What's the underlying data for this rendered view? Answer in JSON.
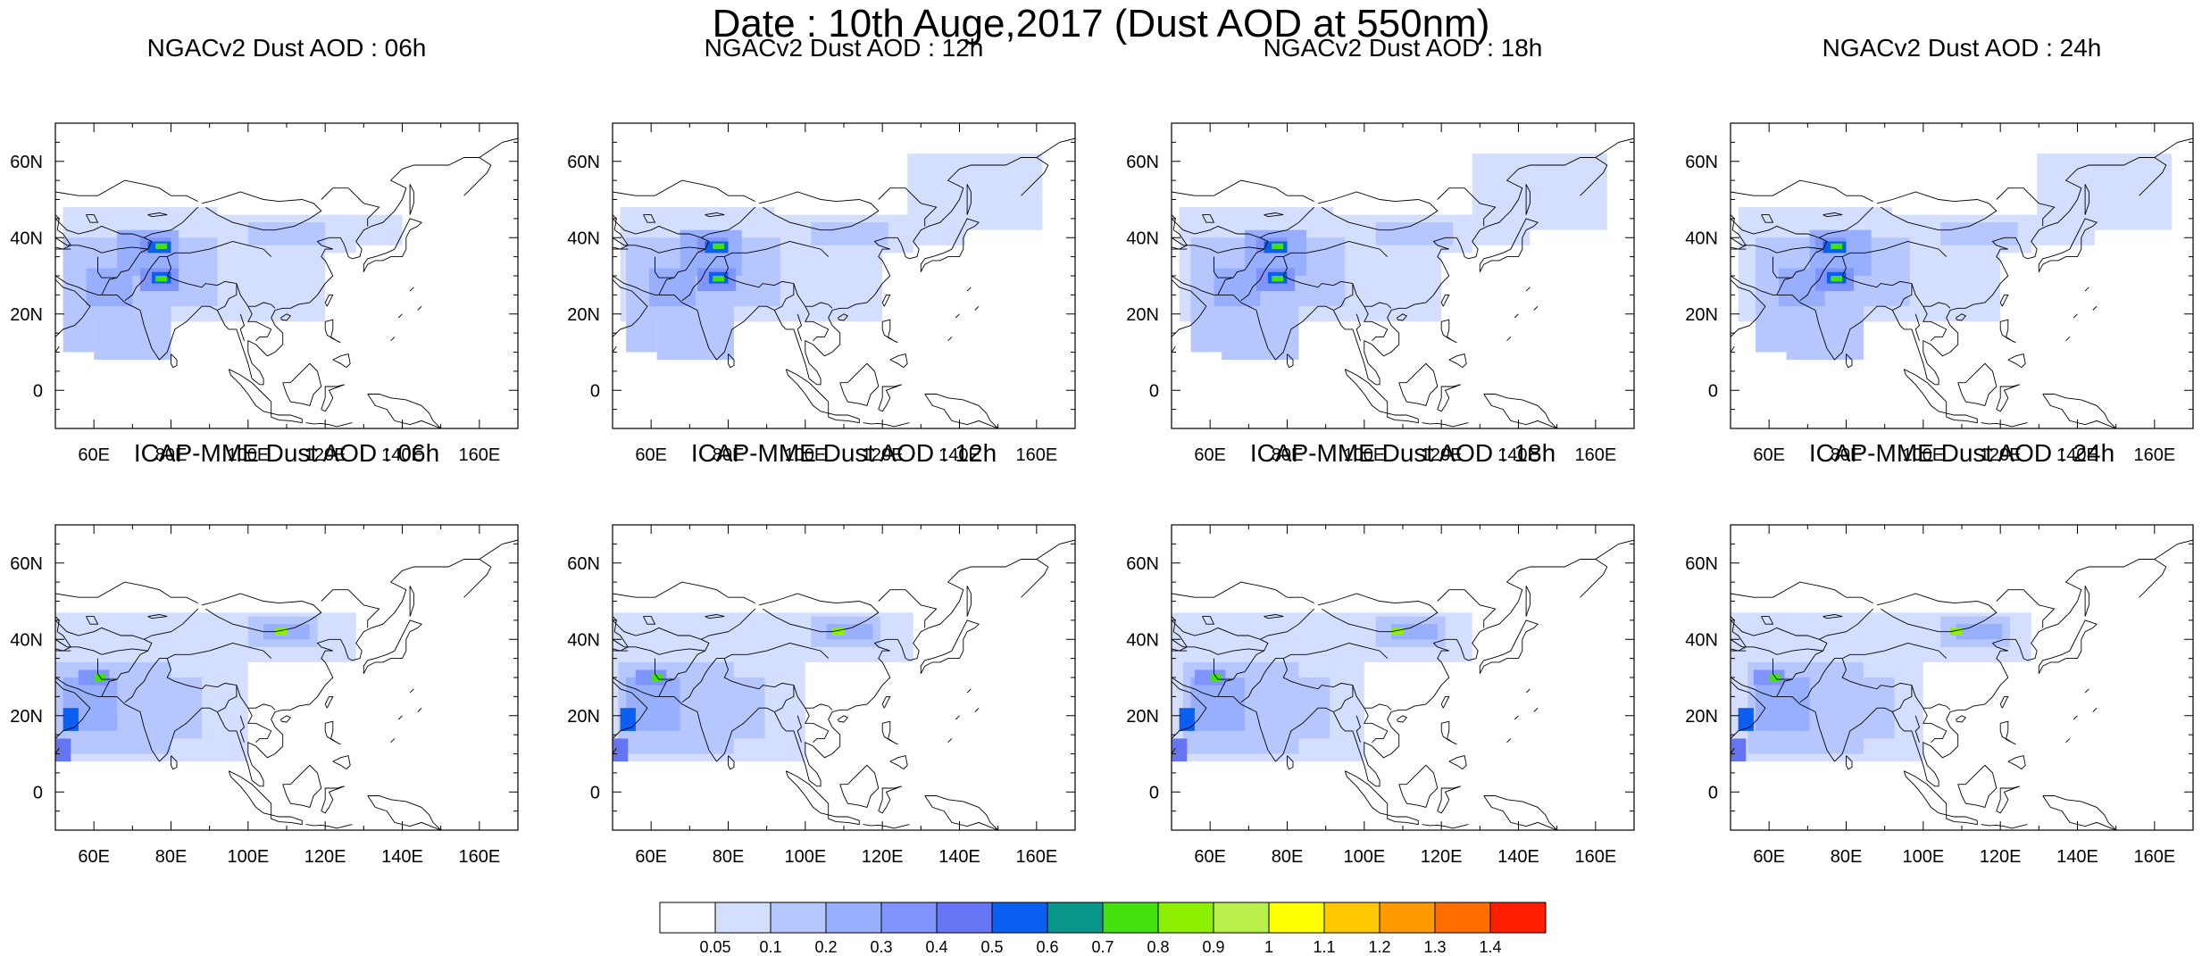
{
  "title": "Date : 10th Auge,2017 (Dust AOD at 550nm)",
  "lat_ticks": [
    "60N",
    "40N",
    "20N",
    "0"
  ],
  "lon_ticks": [
    "60E",
    "80E",
    "100E",
    "120E",
    "140E",
    "160E"
  ],
  "panels": [
    {
      "title": "NGACv2 Dust AOD : 06h",
      "model": "NGACv2",
      "hour": "06h"
    },
    {
      "title": "NGACv2 Dust AOD : 12h",
      "model": "NGACv2",
      "hour": "12h"
    },
    {
      "title": "NGACv2 Dust AOD : 18h",
      "model": "NGACv2",
      "hour": "18h"
    },
    {
      "title": "NGACv2 Dust AOD : 24h",
      "model": "NGACv2",
      "hour": "24h"
    },
    {
      "title": "ICAP-MME Dust AOD : 06h",
      "model": "ICAP-MME",
      "hour": "06h"
    },
    {
      "title": "ICAP-MME Dust AOD : 12h",
      "model": "ICAP-MME",
      "hour": "12h"
    },
    {
      "title": "ICAP-MME Dust AOD : 18h",
      "model": "ICAP-MME",
      "hour": "18h"
    },
    {
      "title": "ICAP-MME Dust AOD : 24h",
      "model": "ICAP-MME",
      "hour": "24h"
    }
  ],
  "colorbar": {
    "labels": [
      "0.05",
      "0.1",
      "0.2",
      "0.3",
      "0.4",
      "0.5",
      "0.6",
      "0.7",
      "0.8",
      "0.9",
      "1",
      "1.1",
      "1.2",
      "1.3",
      "1.4"
    ],
    "colors": [
      "#ffffff",
      "#d4deff",
      "#b6c6ff",
      "#98afff",
      "#8094ff",
      "#6675f4",
      "#0a5ff0",
      "#07958c",
      "#44e00f",
      "#8cf000",
      "#baf04c",
      "#ffff00",
      "#ffc800",
      "#ff9a00",
      "#ff6c00",
      "#ff1e00"
    ]
  },
  "colors": {
    "coastline": "#000000",
    "frame": "#000000"
  }
}
